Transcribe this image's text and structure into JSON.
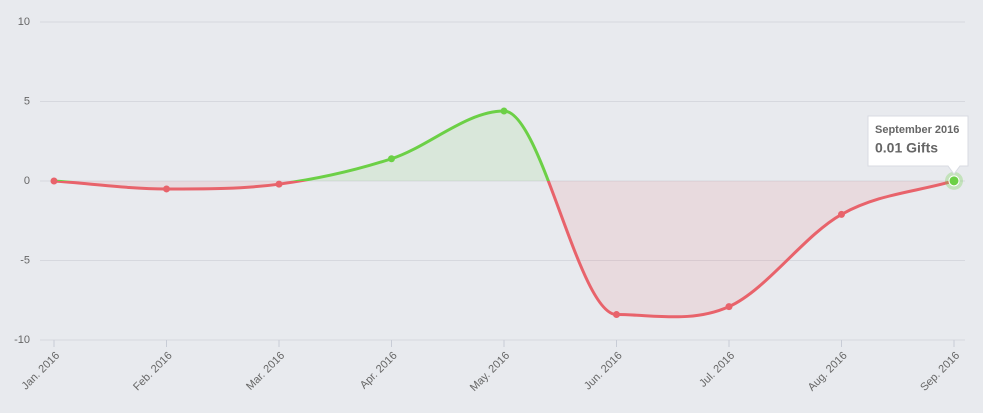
{
  "chart_data": {
    "type": "line",
    "categories": [
      "Jan. 2016",
      "Feb. 2016",
      "Mar. 2016",
      "Apr. 2016",
      "May. 2016",
      "Jun. 2016",
      "Jul. 2016",
      "Aug. 2016",
      "Sep. 2016"
    ],
    "values": [
      0,
      -0.5,
      -0.2,
      1.4,
      4.4,
      -8.4,
      -7.9,
      -2.1,
      0.01
    ],
    "positive_color": "#6cd046",
    "negative_color": "#e8636b",
    "ylim": [
      -10,
      10
    ],
    "yticks": [
      -10,
      -5,
      0,
      5,
      10
    ],
    "grid": true,
    "tooltip": {
      "title": "September 2016",
      "text": "0.01 Gifts"
    }
  }
}
